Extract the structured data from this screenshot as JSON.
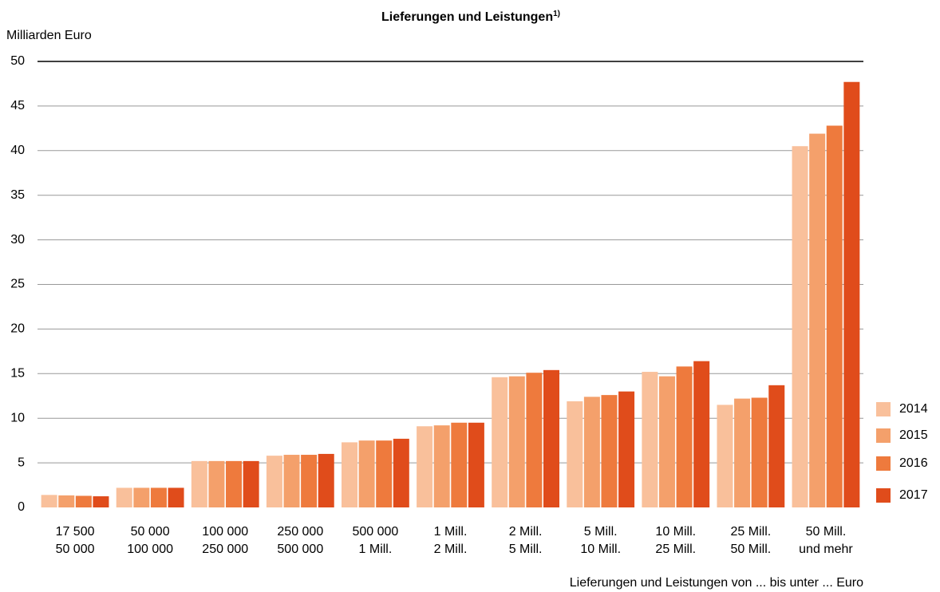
{
  "chart_data": {
    "type": "bar",
    "title": "Lieferungen und Leistungen",
    "title_note": "1)",
    "y_label": "Milliarden Euro",
    "x_label": "Lieferungen und Leistungen von ... bis unter ... Euro",
    "categories": [
      [
        "17 500",
        "50 000"
      ],
      [
        "50 000",
        "100 000"
      ],
      [
        "100 000",
        "250 000"
      ],
      [
        "250 000",
        "500 000"
      ],
      [
        "500 000",
        "1 Mill."
      ],
      [
        "1 Mill.",
        "2 Mill."
      ],
      [
        "2 Mill.",
        "5 Mill."
      ],
      [
        "5 Mill.",
        "10 Mill."
      ],
      [
        "10 Mill.",
        "25 Mill."
      ],
      [
        "25 Mill.",
        "50 Mill."
      ],
      [
        "50 Mill.",
        "und mehr"
      ]
    ],
    "series": [
      {
        "name": "2014",
        "color": "#f9c09b",
        "values": [
          1.4,
          2.2,
          5.2,
          5.8,
          7.3,
          9.1,
          14.6,
          11.9,
          15.2,
          11.5,
          40.5
        ]
      },
      {
        "name": "2015",
        "color": "#f4a06b",
        "values": [
          1.35,
          2.2,
          5.2,
          5.9,
          7.5,
          9.2,
          14.7,
          12.4,
          14.7,
          12.2,
          41.9
        ]
      },
      {
        "name": "2016",
        "color": "#ee7a3d",
        "values": [
          1.3,
          2.2,
          5.2,
          5.9,
          7.5,
          9.5,
          15.1,
          12.6,
          15.8,
          12.3,
          42.8
        ]
      },
      {
        "name": "2017",
        "color": "#e04c1b",
        "values": [
          1.25,
          2.2,
          5.2,
          6.0,
          7.7,
          9.5,
          15.4,
          13.0,
          16.4,
          13.7,
          47.7
        ]
      }
    ],
    "ylim": [
      0,
      50
    ],
    "yticks": [
      0,
      5,
      10,
      15,
      20,
      25,
      30,
      35,
      40,
      45,
      50
    ],
    "grid": true,
    "legend": "right"
  }
}
